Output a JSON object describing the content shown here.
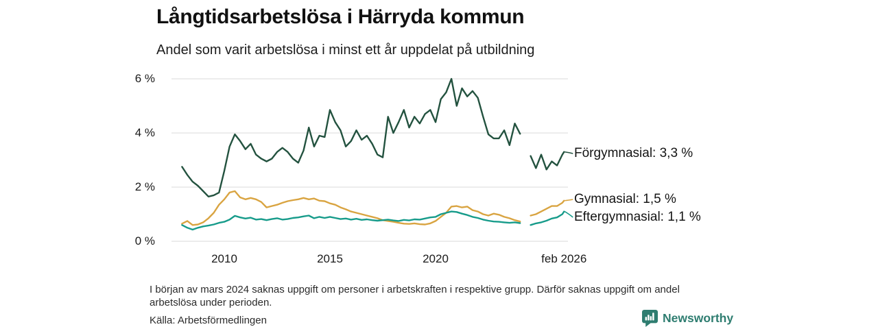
{
  "header": {
    "title": "Långtidsarbetslösa i Härryda kommun",
    "subtitle": "Andel som varit arbetslösa i minst ett år uppdelat på utbildning"
  },
  "legend": {
    "forgymnasial": "Förgymnasial: 3,3 %",
    "gymnasial": "Gymnasial: 1,5 %",
    "eftergymnasial": "Eftergymnasial: 1,1 %"
  },
  "footer": {
    "note": "I början av mars 2024 saknas uppgift om personer i arbetskraften i respektive grupp. Därför saknas uppgift om andel arbetslösa under perioden.",
    "source": "Källa: Arbetsförmedlingen",
    "brand": "Newsworthy"
  },
  "colors": {
    "forgymnasial": "#23523f",
    "gymnasial": "#d9a441",
    "eftergymnasial": "#169b8a",
    "gridline": "#d9d9d9",
    "brand_teal": "#2e7d70",
    "text": "#1a1a1a"
  },
  "chart_data": {
    "type": "line",
    "title": "Långtidsarbetslösa i Härryda kommun",
    "subtitle": "Andel som varit arbetslösa i minst ett år uppdelat på utbildning",
    "ylabel": "",
    "xlabel": "",
    "ylim": [
      0,
      6.3
    ],
    "grid": "horizontal",
    "yticks": [
      {
        "v": 0,
        "label": "0 %"
      },
      {
        "v": 2,
        "label": "2 %"
      },
      {
        "v": 4,
        "label": "4 %"
      },
      {
        "v": 6,
        "label": "6 %"
      }
    ],
    "xticks": [
      {
        "t": 2010,
        "label": "2010"
      },
      {
        "t": 2015,
        "label": "2015"
      },
      {
        "t": 2020,
        "label": "2020"
      },
      {
        "t": 2026.08,
        "label": "feb 2026"
      }
    ],
    "x": [
      2008,
      2008.25,
      2008.5,
      2008.75,
      2009,
      2009.25,
      2009.5,
      2009.75,
      2010,
      2010.25,
      2010.5,
      2010.75,
      2011,
      2011.25,
      2011.5,
      2011.75,
      2012,
      2012.25,
      2012.5,
      2012.75,
      2013,
      2013.25,
      2013.5,
      2013.75,
      2014,
      2014.25,
      2014.5,
      2014.75,
      2015,
      2015.25,
      2015.5,
      2015.75,
      2016,
      2016.25,
      2016.5,
      2016.75,
      2017,
      2017.25,
      2017.5,
      2017.75,
      2018,
      2018.25,
      2018.5,
      2018.75,
      2019,
      2019.25,
      2019.5,
      2019.75,
      2020,
      2020.25,
      2020.5,
      2020.75,
      2021,
      2021.25,
      2021.5,
      2021.75,
      2022,
      2022.25,
      2022.5,
      2022.75,
      2023,
      2023.25,
      2023.5,
      2023.75,
      2024,
      2024.25,
      2024.5,
      2024.75,
      2025,
      2025.25,
      2025.5,
      2025.75,
      2026,
      2026.08
    ],
    "series": [
      {
        "name": "Förgymnasial",
        "end_value": 3.3,
        "color": "#23523f",
        "values": [
          2.75,
          2.45,
          2.2,
          2.05,
          1.85,
          1.65,
          1.7,
          1.8,
          2.6,
          3.5,
          3.95,
          3.7,
          3.4,
          3.6,
          3.2,
          3.05,
          2.95,
          3.05,
          3.3,
          3.45,
          3.3,
          3.05,
          2.9,
          3.35,
          4.2,
          3.5,
          3.9,
          3.85,
          4.85,
          4.4,
          4.1,
          3.5,
          3.7,
          4.1,
          3.75,
          3.9,
          3.6,
          3.2,
          3.1,
          4.6,
          4.0,
          4.4,
          4.85,
          4.2,
          4.6,
          4.35,
          4.7,
          4.85,
          4.4,
          5.25,
          5.5,
          6.0,
          5.0,
          5.65,
          5.35,
          5.55,
          5.3,
          4.6,
          3.95,
          3.8,
          3.8,
          4.1,
          3.55,
          4.35,
          3.97,
          null,
          3.15,
          2.7,
          3.2,
          2.65,
          2.95,
          2.8,
          3.2,
          3.3
        ]
      },
      {
        "name": "Gymnasial",
        "end_value": 1.5,
        "color": "#d9a441",
        "values": [
          0.65,
          0.75,
          0.6,
          0.62,
          0.7,
          0.85,
          1.05,
          1.35,
          1.55,
          1.8,
          1.85,
          1.62,
          1.55,
          1.6,
          1.55,
          1.45,
          1.25,
          1.3,
          1.35,
          1.42,
          1.48,
          1.52,
          1.55,
          1.6,
          1.55,
          1.58,
          1.5,
          1.48,
          1.4,
          1.35,
          1.25,
          1.18,
          1.1,
          1.05,
          1.0,
          0.95,
          0.9,
          0.85,
          0.78,
          0.75,
          0.72,
          0.68,
          0.65,
          0.64,
          0.66,
          0.63,
          0.62,
          0.66,
          0.75,
          0.9,
          1.05,
          1.28,
          1.3,
          1.25,
          1.28,
          1.15,
          1.1,
          1.0,
          0.95,
          1.02,
          0.98,
          0.9,
          0.85,
          0.78,
          0.73,
          null,
          0.95,
          1.0,
          1.1,
          1.2,
          1.3,
          1.3,
          1.42,
          1.5
        ]
      },
      {
        "name": "Eftergymnasial",
        "end_value": 1.1,
        "color": "#169b8a",
        "values": [
          0.6,
          0.5,
          0.43,
          0.5,
          0.55,
          0.58,
          0.62,
          0.68,
          0.72,
          0.8,
          0.94,
          0.88,
          0.84,
          0.87,
          0.8,
          0.82,
          0.78,
          0.82,
          0.85,
          0.8,
          0.82,
          0.86,
          0.88,
          0.92,
          0.95,
          0.85,
          0.9,
          0.86,
          0.9,
          0.86,
          0.82,
          0.84,
          0.8,
          0.83,
          0.79,
          0.81,
          0.78,
          0.76,
          0.78,
          0.8,
          0.77,
          0.75,
          0.79,
          0.77,
          0.81,
          0.8,
          0.84,
          0.88,
          0.9,
          1.0,
          1.05,
          1.1,
          1.08,
          1.02,
          0.97,
          0.9,
          0.86,
          0.8,
          0.76,
          0.73,
          0.72,
          0.7,
          0.68,
          0.7,
          0.67,
          null,
          0.6,
          0.66,
          0.7,
          0.76,
          0.84,
          0.88,
          1.0,
          1.1
        ]
      }
    ]
  }
}
